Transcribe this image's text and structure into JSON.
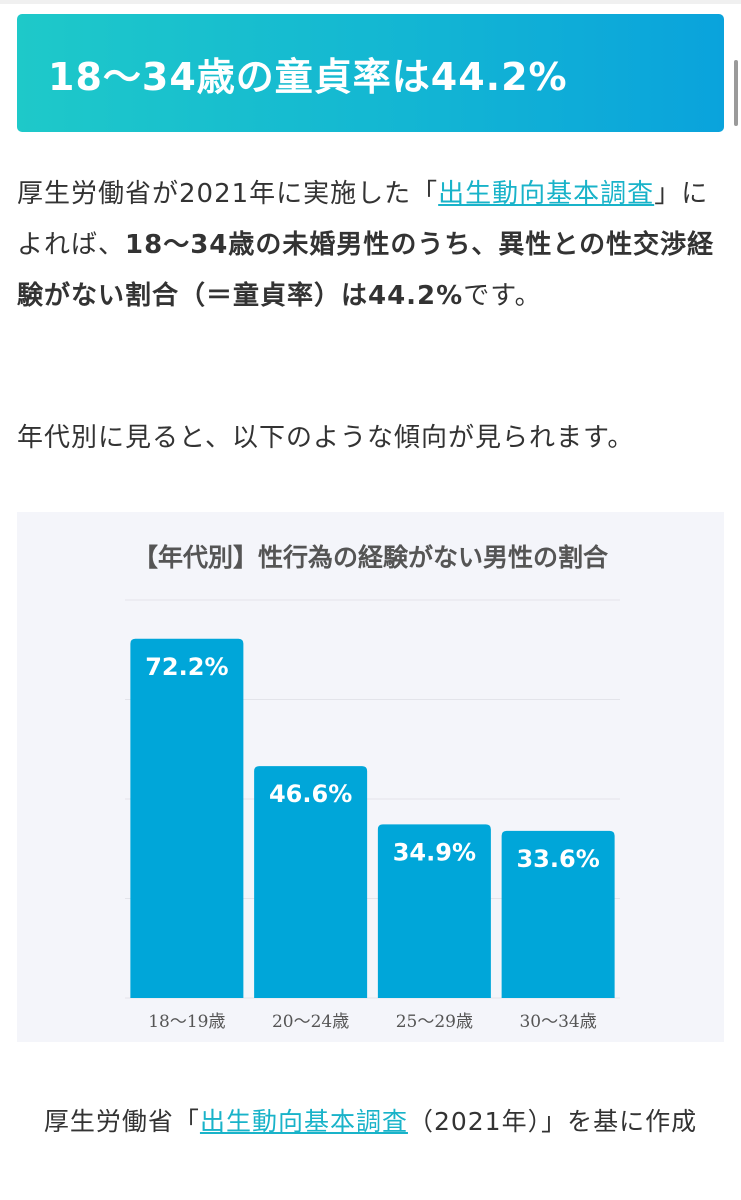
{
  "heading": "18〜34歳の童貞率は44.2%",
  "intro": {
    "t1": "厚生労働省が2021年に実施した「",
    "link": "出生動向基本調査",
    "t2": "」によれば、",
    "bold": "18〜34歳の未婚男性のうち、異性との性交渉経験がない割合（＝童貞率）は44.2%",
    "t3": "です。"
  },
  "sentence2": "年代別に見ると、以下のような傾向が見られます。",
  "chart_data": {
    "type": "bar",
    "title": "【年代別】性行為の経験がない男性の割合",
    "categories": [
      "18〜19歳",
      "20〜24歳",
      "25〜29歳",
      "30〜34歳"
    ],
    "values": [
      72.2,
      46.6,
      34.9,
      33.6
    ],
    "value_labels": [
      "72.2%",
      "46.6%",
      "34.9%",
      "33.6%"
    ],
    "ylim": [
      0,
      80
    ],
    "grid": true,
    "bar_color": "#00a6d9",
    "xlabel": "",
    "ylabel": ""
  },
  "caption": {
    "t1": "厚生労働省「",
    "link": "出生動向基本調査",
    "t2": "（2021年）」を基に作成"
  },
  "colors": {
    "accent": "#13b6d3",
    "link": "#19b3c9",
    "panel_bg": "#f4f5fa"
  }
}
